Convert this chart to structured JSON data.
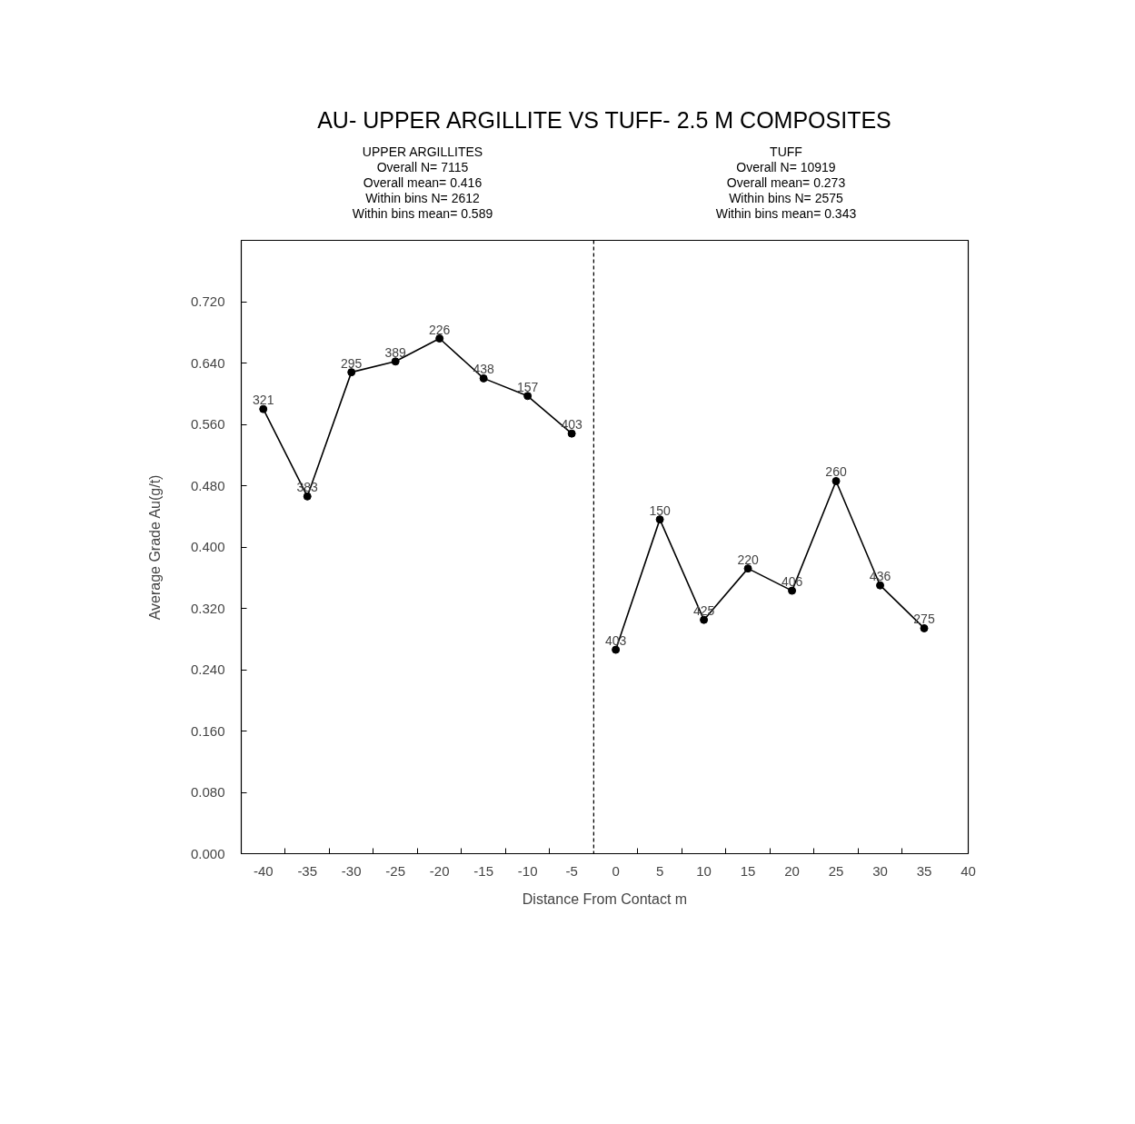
{
  "chart_data": {
    "type": "line",
    "title": "AU- UPPER ARGILLITE VS TUFF- 2.5 M COMPOSITES",
    "xlabel": "Distance From Contact m",
    "ylabel": "Average Grade Au(g/t)",
    "annotations": [
      "UPPER ARGILLITES\nOverall N= 7115\nOverall mean= 0.416\nWithin bins N= 2612\nWithin bins mean= 0.589",
      "TUFF\nOverall N= 10919\nOverall mean= 0.273\nWithin bins N= 2575\nWithin bins mean= 0.343",
      {
        "text": "321",
        "x": -40,
        "y": 0.58
      },
      {
        "text": "383",
        "x": -35,
        "y": 0.466
      },
      {
        "text": "295",
        "x": -30,
        "y": 0.628
      },
      {
        "text": "389",
        "x": -25,
        "y": 0.642
      },
      {
        "text": "226",
        "x": -20,
        "y": 0.672
      },
      {
        "text": "438",
        "x": -15,
        "y": 0.62
      },
      {
        "text": "157",
        "x": -10,
        "y": 0.597
      },
      {
        "text": "403",
        "x": -5,
        "y": 0.548
      },
      {
        "text": "403",
        "x": 0,
        "y": 0.266
      },
      {
        "text": "150",
        "x": 5,
        "y": 0.436
      },
      {
        "text": "425",
        "x": 10,
        "y": 0.305
      },
      {
        "text": "220",
        "x": 15,
        "y": 0.372
      },
      {
        "text": "406",
        "x": 20,
        "y": 0.343
      },
      {
        "text": "260",
        "x": 25,
        "y": 0.486
      },
      {
        "text": "436",
        "x": 30,
        "y": 0.35
      },
      {
        "text": "275",
        "x": 35,
        "y": 0.294
      }
    ],
    "series": [
      {
        "color": "#000000",
        "x": [
          -40,
          -35,
          -30,
          -25,
          -20,
          -15,
          -10,
          -5
        ],
        "values": [
          0.58,
          0.466,
          0.628,
          0.642,
          0.672,
          0.62,
          0.597,
          0.548
        ]
      },
      {
        "color": "#000000",
        "x": [
          0,
          5,
          10,
          15,
          20,
          25,
          30,
          35
        ],
        "values": [
          0.266,
          0.436,
          0.305,
          0.372,
          0.343,
          0.486,
          0.35,
          0.294
        ]
      }
    ],
    "marker": "circle",
    "line_style": "solid",
    "grid": false,
    "xlim": [
      -42.5,
      40
    ],
    "xticks": [
      -40,
      {
        "value": -37.5,
        "label": null
      },
      -35,
      {
        "value": -32.5,
        "label": null
      },
      -30,
      {
        "value": -27.5,
        "label": null
      },
      -25,
      {
        "value": -22.5,
        "label": null
      },
      -20,
      {
        "value": -17.5,
        "label": null
      },
      -15,
      {
        "value": -12.5,
        "label": null
      },
      -10,
      {
        "value": -7.5,
        "label": null
      },
      -5,
      0,
      {
        "value": 2.5,
        "label": null
      },
      5,
      {
        "value": 7.5,
        "label": null
      },
      10,
      {
        "value": 12.5,
        "label": null
      },
      15,
      {
        "value": 17.5,
        "label": null
      },
      20,
      {
        "value": 22.5,
        "label": null
      },
      25,
      {
        "value": 27.5,
        "label": null
      },
      30,
      {
        "value": 32.5,
        "label": null
      },
      35,
      40
    ],
    "ylim": [
      0,
      0.8
    ],
    "yticks": [
      {
        "value": 0,
        "label": "0.000"
      },
      {
        "value": 0.08,
        "label": "0.080"
      },
      {
        "value": 0.16,
        "label": "0.160"
      },
      {
        "value": 0.24,
        "label": "0.240"
      },
      {
        "value": 0.32,
        "label": "0.320"
      },
      {
        "value": 0.4,
        "label": "0.400"
      },
      {
        "value": 0.48,
        "label": "0.480"
      },
      {
        "value": 0.56,
        "label": "0.560"
      },
      {
        "value": 0.64,
        "label": "0.640"
      },
      {
        "value": 0.72,
        "label": "0.720"
      }
    ],
    "ref_lines": [
      {
        "axis": "x",
        "value": -2.5,
        "color": "#000000",
        "line_style": "dashed"
      }
    ]
  }
}
